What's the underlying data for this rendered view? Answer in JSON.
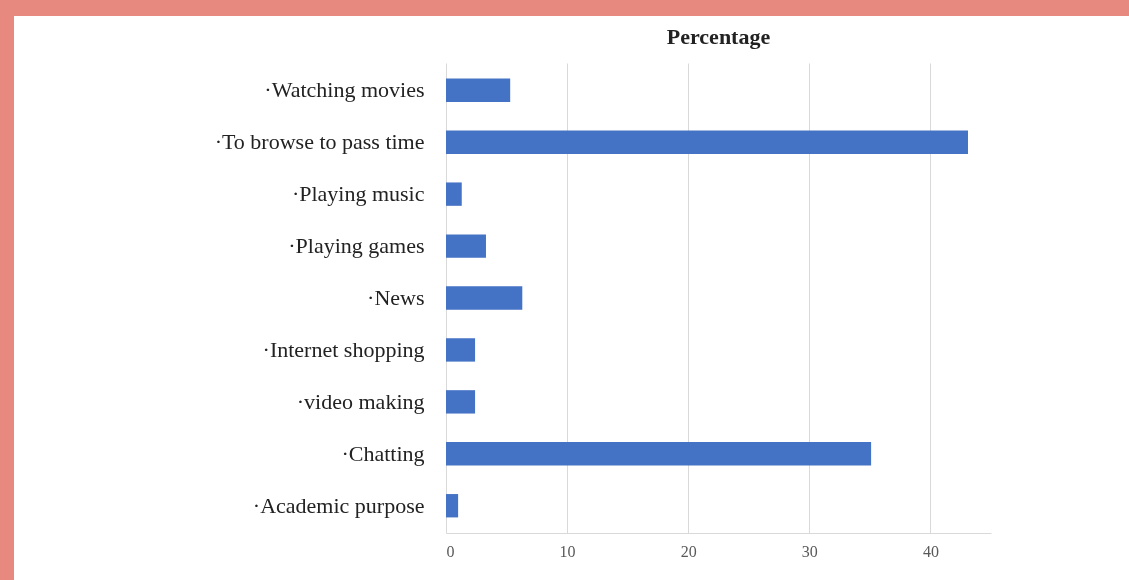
{
  "chart_data": {
    "type": "bar",
    "orientation": "horizontal",
    "title": "Percentage",
    "categories": [
      "·Watching movies",
      "·To browse to pass time",
      "·Playing music",
      "·Playing games",
      "·News",
      "·Internet shopping",
      "·video making",
      "·Chatting",
      "·Academic purpose"
    ],
    "values": [
      5.3,
      43.1,
      1.3,
      3.3,
      6.3,
      2.4,
      2.4,
      35.1,
      1.0
    ],
    "color": "#4472c4",
    "xlim": [
      0,
      45
    ],
    "xticks": [
      0,
      10,
      20,
      30,
      40
    ],
    "grid": "x"
  }
}
